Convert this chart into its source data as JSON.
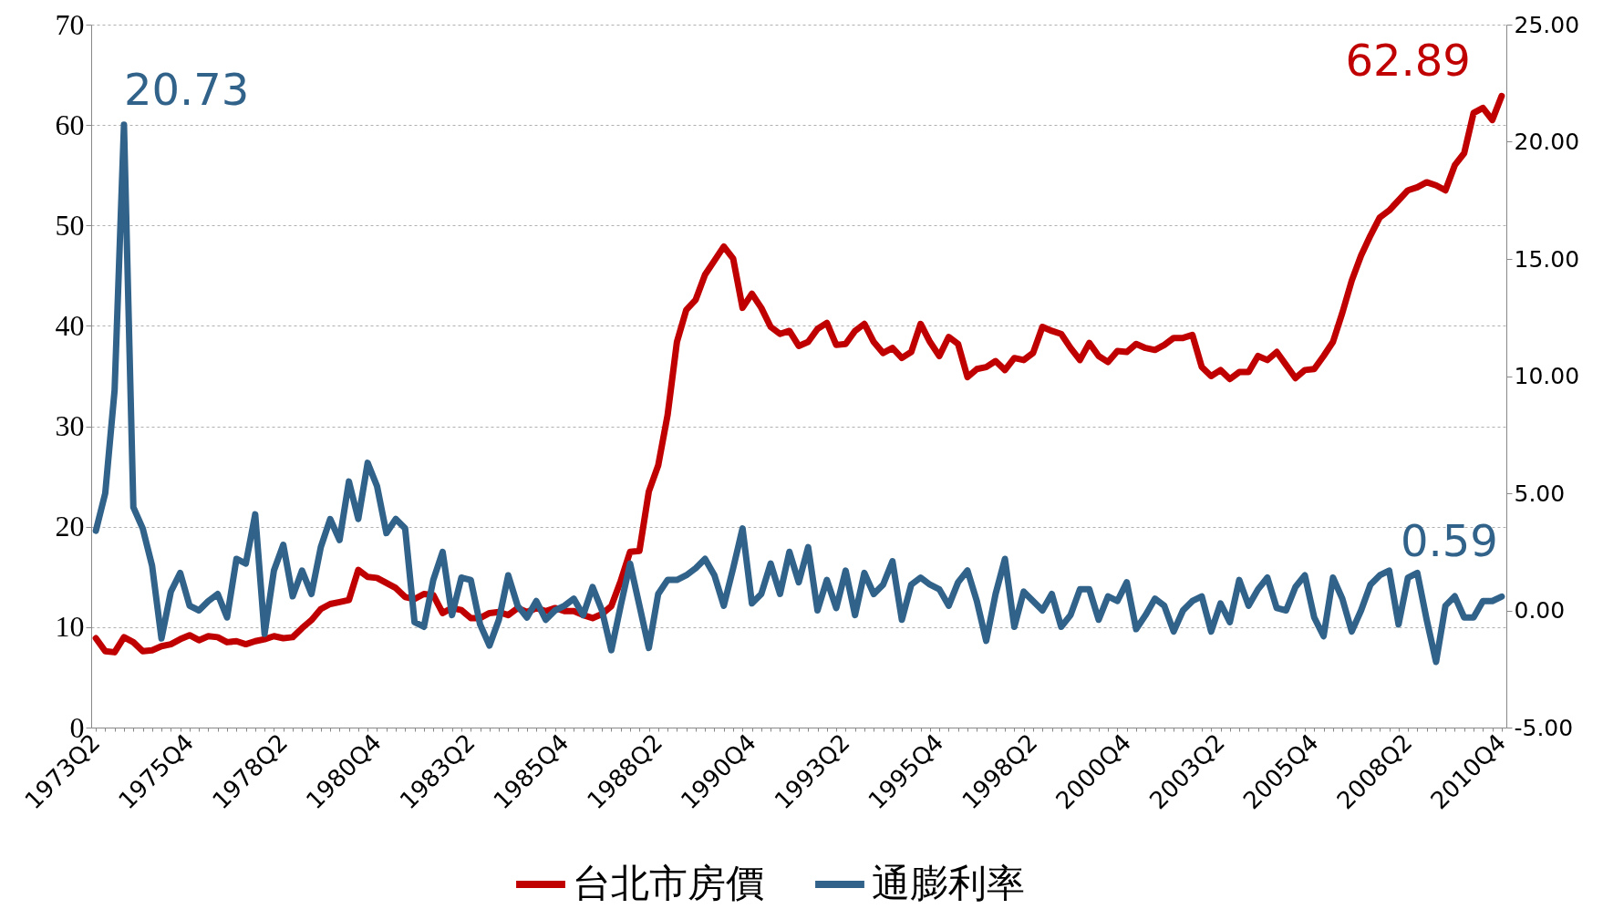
{
  "chart_data": {
    "type": "line",
    "categories": [
      "1973Q2",
      null,
      null,
      null,
      null,
      null,
      null,
      null,
      null,
      null,
      "1975Q4",
      null,
      null,
      null,
      null,
      null,
      null,
      null,
      null,
      null,
      "1978Q2",
      null,
      null,
      null,
      null,
      null,
      null,
      null,
      null,
      null,
      "1980Q4",
      null,
      null,
      null,
      null,
      null,
      null,
      null,
      null,
      null,
      "1983Q2",
      null,
      null,
      null,
      null,
      null,
      null,
      null,
      null,
      null,
      "1985Q4",
      null,
      null,
      null,
      null,
      null,
      null,
      null,
      null,
      null,
      "1988Q2",
      null,
      null,
      null,
      null,
      null,
      null,
      null,
      null,
      null,
      "1990Q4",
      null,
      null,
      null,
      null,
      null,
      null,
      null,
      null,
      null,
      "1993Q2",
      null,
      null,
      null,
      null,
      null,
      null,
      null,
      null,
      null,
      "1995Q4",
      null,
      null,
      null,
      null,
      null,
      null,
      null,
      null,
      null,
      "1998Q2",
      null,
      null,
      null,
      null,
      null,
      null,
      null,
      null,
      null,
      "2000Q4",
      null,
      null,
      null,
      null,
      null,
      null,
      null,
      null,
      null,
      "2003Q2",
      null,
      null,
      null,
      null,
      null,
      null,
      null,
      null,
      null,
      "2005Q4",
      null,
      null,
      null,
      null,
      null,
      null,
      null,
      null,
      null,
      "2008Q2",
      null,
      null,
      null,
      null,
      null,
      null,
      null,
      null,
      null,
      "2010Q4"
    ],
    "series": [
      {
        "name": "台北市房價",
        "color": "#c00000",
        "values": [
          8.9,
          7.6,
          7.5,
          9.0,
          8.5,
          7.6,
          7.7,
          8.1,
          8.3,
          8.8,
          9.2,
          8.7,
          9.1,
          9.0,
          8.5,
          8.6,
          8.3,
          8.6,
          8.8,
          9.1,
          8.9,
          9.0,
          9.9,
          10.7,
          11.8,
          12.3,
          12.5,
          12.7,
          15.7,
          15.0,
          14.9,
          14.4,
          13.9,
          13.0,
          12.8,
          13.3,
          13.2,
          11.4,
          11.9,
          11.7,
          10.9,
          10.9,
          11.4,
          11.5,
          11.2,
          11.9,
          11.5,
          11.9,
          11.6,
          11.9,
          11.6,
          11.6,
          11.2,
          10.9,
          11.3,
          12.1,
          14.6,
          17.5,
          17.6,
          23.5,
          26.1,
          31.1,
          38.4,
          41.6,
          42.6,
          45.1,
          46.5,
          47.9,
          46.7,
          41.8,
          43.2,
          41.8,
          39.9,
          39.2,
          39.5,
          38.0,
          38.4,
          39.7,
          40.3,
          38.1,
          38.2,
          39.5,
          40.2,
          38.4,
          37.3,
          37.8,
          36.8,
          37.4,
          40.2,
          38.4,
          37.0,
          38.9,
          38.2,
          34.9,
          35.7,
          35.9,
          36.5,
          35.6,
          36.8,
          36.6,
          37.3,
          39.9,
          39.5,
          39.2,
          37.8,
          36.6,
          38.3,
          37.0,
          36.4,
          37.5,
          37.4,
          38.2,
          37.8,
          37.6,
          38.1,
          38.8,
          38.8,
          39.1,
          35.9,
          35.0,
          35.6,
          34.7,
          35.4,
          35.4,
          37.0,
          36.6,
          37.4,
          36.1,
          34.8,
          35.6,
          35.7,
          37.0,
          38.4,
          41.3,
          44.5,
          47.0,
          49.0,
          50.8,
          51.5,
          52.5,
          53.5,
          53.8,
          54.3,
          54.0,
          53.5,
          56.0,
          57.2,
          61.2,
          61.7,
          60.5,
          62.89
        ],
        "value_labels": [
          null,
          null,
          null,
          null,
          null,
          null,
          null,
          null,
          null,
          null,
          null,
          null,
          null,
          null,
          null,
          null,
          null,
          null,
          null,
          null,
          null,
          null,
          null,
          null,
          null,
          null,
          null,
          null,
          null,
          null,
          null,
          null,
          null,
          null,
          null,
          null,
          null,
          null,
          null,
          null,
          null,
          null,
          null,
          null,
          null,
          null,
          null,
          null,
          null,
          null,
          null,
          null,
          null,
          null,
          null,
          null,
          null,
          null,
          null,
          null,
          null,
          null,
          null,
          null,
          null,
          null,
          null,
          null,
          null,
          null,
          null,
          null,
          null,
          null,
          null,
          null,
          null,
          null,
          null,
          null,
          null,
          null,
          null,
          null,
          null,
          null,
          null,
          null,
          null,
          null,
          null,
          null,
          null,
          null,
          null,
          null,
          null,
          null,
          null,
          null,
          null,
          null,
          null,
          null,
          null,
          null,
          null,
          null,
          null,
          null,
          null,
          null,
          null,
          null,
          null,
          null,
          null,
          null,
          null,
          null,
          null,
          null,
          null,
          null,
          null,
          null,
          null,
          null,
          null,
          null,
          null,
          null,
          null,
          null,
          null,
          null,
          null,
          null,
          null,
          null,
          null,
          null,
          null,
          null,
          null,
          null,
          null,
          null,
          null,
          null,
          "62.89"
        ]
      },
      {
        "name": "通膨利率",
        "color": "#31628a",
        "axis": "y2",
        "values": [
          3.4,
          5.0,
          9.4,
          20.73,
          4.4,
          3.5,
          1.9,
          -1.2,
          0.8,
          1.6,
          0.2,
          0.0,
          0.4,
          0.7,
          -0.3,
          2.2,
          2.0,
          4.1,
          -1.0,
          1.7,
          2.8,
          0.6,
          1.7,
          0.7,
          2.7,
          3.9,
          3.0,
          5.5,
          3.9,
          6.3,
          5.3,
          3.3,
          3.9,
          3.5,
          -0.5,
          -0.7,
          1.3,
          2.5,
          -0.2,
          1.4,
          1.3,
          -0.6,
          -1.5,
          -0.4,
          1.5,
          0.2,
          -0.3,
          0.4,
          -0.4,
          0.0,
          0.2,
          0.5,
          -0.2,
          1.0,
          0.0,
          -1.7,
          0.2,
          2.0,
          0.2,
          -1.6,
          0.7,
          1.3,
          1.3,
          1.5,
          1.8,
          2.2,
          1.5,
          0.2,
          1.8,
          3.5,
          0.3,
          0.7,
          2.0,
          0.7,
          2.5,
          1.2,
          2.7,
          0.0,
          1.3,
          0.1,
          1.7,
          -0.2,
          1.6,
          0.7,
          1.1,
          2.1,
          -0.4,
          1.1,
          1.4,
          1.1,
          0.9,
          0.2,
          1.2,
          1.7,
          0.4,
          -1.3,
          0.7,
          2.2,
          -0.7,
          0.8,
          0.4,
          0.0,
          0.7,
          -0.7,
          -0.2,
          0.9,
          0.9,
          -0.4,
          0.6,
          0.4,
          1.2,
          -0.8,
          -0.2,
          0.5,
          0.2,
          -0.9,
          0.0,
          0.4,
          0.6,
          -0.9,
          0.3,
          -0.5,
          1.3,
          0.2,
          0.9,
          1.4,
          0.1,
          0.0,
          1.0,
          1.5,
          -0.3,
          -1.1,
          1.4,
          0.5,
          -0.9,
          0.0,
          1.1,
          1.5,
          1.7,
          -0.6,
          1.4,
          1.6,
          -0.4,
          -2.2,
          0.2,
          0.6,
          -0.3,
          -0.3,
          0.4,
          0.4,
          0.59
        ],
        "value_labels": [
          null,
          null,
          null,
          "20.73",
          null,
          null,
          null,
          null,
          null,
          null,
          null,
          null,
          null,
          null,
          null,
          null,
          null,
          null,
          null,
          null,
          null,
          null,
          null,
          null,
          null,
          null,
          null,
          null,
          null,
          null,
          null,
          null,
          null,
          null,
          null,
          null,
          null,
          null,
          null,
          null,
          null,
          null,
          null,
          null,
          null,
          null,
          null,
          null,
          null,
          null,
          null,
          null,
          null,
          null,
          null,
          null,
          null,
          null,
          null,
          null,
          null,
          null,
          null,
          null,
          null,
          null,
          null,
          null,
          null,
          null,
          null,
          null,
          null,
          null,
          null,
          null,
          null,
          null,
          null,
          null,
          null,
          null,
          null,
          null,
          null,
          null,
          null,
          null,
          null,
          null,
          null,
          null,
          null,
          null,
          null,
          null,
          null,
          null,
          null,
          null,
          null,
          null,
          null,
          null,
          null,
          null,
          null,
          null,
          null,
          null,
          null,
          null,
          null,
          null,
          null,
          null,
          null,
          null,
          null,
          null,
          null,
          null,
          null,
          null,
          null,
          null,
          null,
          null,
          null,
          null,
          null,
          null,
          null,
          null,
          null,
          null,
          null,
          null,
          null,
          null,
          null,
          null,
          null,
          null,
          null,
          null,
          null,
          null,
          null,
          null,
          "0.59"
        ]
      }
    ],
    "ylim": [
      0,
      70
    ],
    "yticks": [
      0,
      10,
      20,
      30,
      40,
      50,
      60,
      70
    ],
    "y2lim": [
      -5,
      25
    ],
    "y2ticks": [
      {
        "value": -5,
        "label": "-5.00"
      },
      {
        "value": 0,
        "label": "0.00"
      },
      {
        "value": 5,
        "label": "5.00"
      },
      {
        "value": 10,
        "label": "10.00"
      },
      {
        "value": 15,
        "label": "15.00"
      },
      {
        "value": 20,
        "label": "20.00"
      },
      {
        "value": 25,
        "label": "25.00"
      }
    ],
    "grid": "y",
    "legend": "bottom"
  }
}
